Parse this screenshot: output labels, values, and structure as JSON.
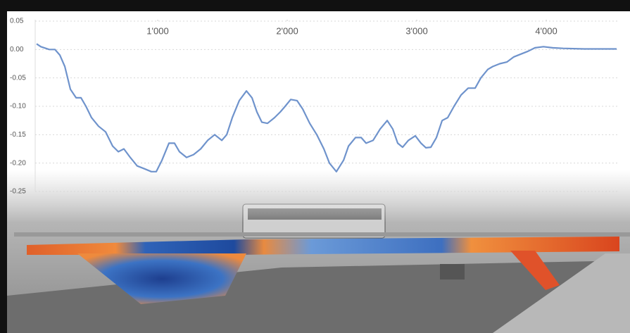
{
  "chart_data": {
    "type": "line",
    "x": [
      65,
      98,
      163,
      207,
      245,
      283,
      326,
      370,
      408,
      446,
      489,
      543,
      598,
      652,
      696,
      739,
      788,
      842,
      897,
      951,
      989,
      1033,
      1087,
      1130,
      1168,
      1223,
      1277,
      1332,
      1386,
      1440,
      1495,
      1533,
      1576,
      1630,
      1685,
      1728,
      1766,
      1804,
      1848,
      1902,
      1946,
      1984,
      2027,
      2076,
      2120,
      2174,
      2228,
      2283,
      2326,
      2380,
      2435,
      2473,
      2527,
      2571,
      2609,
      2663,
      2717,
      2772,
      2815,
      2853,
      2891,
      2935,
      2989,
      3033,
      3071,
      3109,
      3152,
      3196,
      3239,
      3288,
      3342,
      3397,
      3451,
      3495,
      3549,
      3587,
      3641,
      3696,
      3750,
      3804,
      3859,
      3913,
      3978,
      4049,
      4130,
      4293,
      4543
    ],
    "series": [
      {
        "color": "#6f93cc",
        "values": [
          0.01,
          0.005,
          0.0,
          0.0,
          -0.01,
          -0.03,
          -0.07,
          -0.085,
          -0.085,
          -0.1,
          -0.12,
          -0.135,
          -0.145,
          -0.17,
          -0.18,
          -0.175,
          -0.19,
          -0.205,
          -0.21,
          -0.215,
          -0.215,
          -0.195,
          -0.165,
          -0.165,
          -0.18,
          -0.19,
          -0.185,
          -0.175,
          -0.16,
          -0.15,
          -0.16,
          -0.15,
          -0.12,
          -0.09,
          -0.073,
          -0.085,
          -0.11,
          -0.128,
          -0.13,
          -0.12,
          -0.11,
          -0.1,
          -0.088,
          -0.09,
          -0.105,
          -0.13,
          -0.15,
          -0.175,
          -0.2,
          -0.215,
          -0.195,
          -0.17,
          -0.155,
          -0.155,
          -0.165,
          -0.16,
          -0.14,
          -0.125,
          -0.14,
          -0.165,
          -0.172,
          -0.16,
          -0.152,
          -0.165,
          -0.173,
          -0.172,
          -0.155,
          -0.125,
          -0.12,
          -0.1,
          -0.08,
          -0.068,
          -0.068,
          -0.05,
          -0.035,
          -0.03,
          -0.025,
          -0.022,
          -0.013,
          -0.008,
          -0.003,
          0.003,
          0.005,
          0.003,
          0.002,
          0.001,
          0.001
        ]
      }
    ],
    "xlim": [
      0,
      4565
    ],
    "xticks": [
      {
        "value": 1000,
        "label": "1'000"
      },
      {
        "value": 2000,
        "label": "2'000"
      },
      {
        "value": 3000,
        "label": "3'000"
      },
      {
        "value": 4000,
        "label": "4'000"
      }
    ],
    "ylim": [
      -0.25,
      0.05
    ],
    "yticks": [
      0.05,
      {
        "value": 0,
        "label": "0.00"
      },
      -0.05,
      {
        "value": -0.1,
        "label": "-0.10"
      },
      -0.15,
      {
        "value": -0.2,
        "label": "-0.20"
      },
      -0.25
    ],
    "grid": true
  }
}
